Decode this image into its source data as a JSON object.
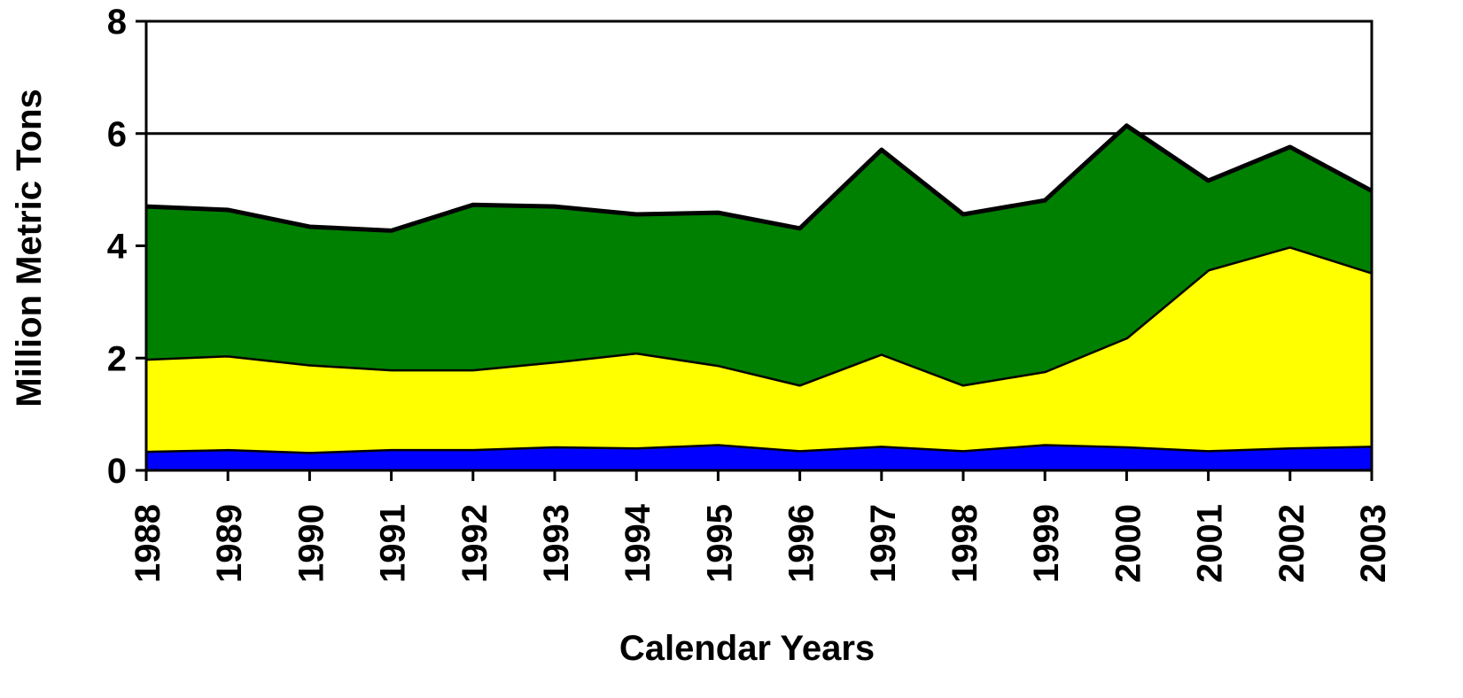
{
  "chart_data": {
    "type": "stacked_area",
    "x_label": "Calendar Years",
    "y_label": "Million  Metric Tons",
    "categories": [
      "1988",
      "1989",
      "1990",
      "1991",
      "1992",
      "1993",
      "1994",
      "1995",
      "1996",
      "1997",
      "1998",
      "1999",
      "2000",
      "2001",
      "2002",
      "2003"
    ],
    "series": [
      {
        "color": "#0000ff",
        "values": [
          0.35,
          0.38,
          0.33,
          0.38,
          0.38,
          0.43,
          0.41,
          0.47,
          0.36,
          0.44,
          0.36,
          0.47,
          0.43,
          0.36,
          0.41,
          0.44
        ]
      },
      {
        "color": "#ffff00",
        "values": [
          1.64,
          1.67,
          1.56,
          1.42,
          1.42,
          1.51,
          1.69,
          1.41,
          1.17,
          1.64,
          1.17,
          1.3,
          1.94,
          3.22,
          3.58,
          3.09
        ]
      },
      {
        "color": "#008000",
        "values": [
          2.71,
          2.59,
          2.45,
          2.47,
          2.93,
          2.76,
          2.46,
          2.71,
          2.78,
          3.63,
          3.03,
          3.04,
          3.77,
          1.58,
          1.77,
          1.45
        ]
      }
    ],
    "ylim": [
      0,
      8
    ],
    "yticks": [
      0,
      2,
      4,
      6,
      8
    ],
    "grid": true
  }
}
